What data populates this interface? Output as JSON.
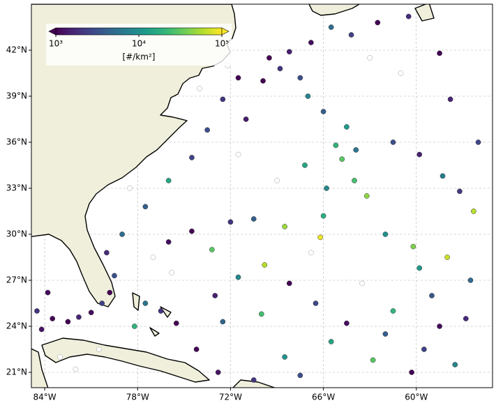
{
  "chart_data": {
    "type": "scatter",
    "x": [
      -69.5,
      -68.8,
      -68.2,
      -67.5,
      -69.9,
      -66.8,
      -65.5,
      -64.2,
      -62.5,
      -60.5,
      -67.0,
      -66.0,
      -64.5,
      -65.2,
      -64.8,
      -63.9,
      -64.0,
      -63.2,
      -65.8,
      -67.2,
      -61.5,
      -59.8,
      -58.3,
      -57.2,
      -56.3,
      -70.5,
      -72.0,
      -74.5,
      -76.0,
      -73.2,
      -68.5,
      -66.0,
      -62.0,
      -60.2,
      -58.0,
      -56.5,
      -59.0,
      -61.5,
      -58.5,
      -59.5,
      -57.5,
      -60.3,
      -62.8,
      -65.5,
      -66.5,
      -68.2,
      -69.8,
      -71.5,
      -73.0,
      -72.5,
      -74.2,
      -72.8,
      -70.5,
      -68.5,
      -67.5,
      -83.5,
      -82.5,
      -81.8,
      -81.0,
      -80.3,
      -79.8,
      -79.5,
      -80.0,
      -79.0,
      -77.5,
      -76.0,
      -74.5,
      -73.5,
      -71.0,
      -72.5,
      -71.5,
      -77.5,
      -76.5,
      -75.5,
      -78.2,
      -84.2,
      -83.0,
      -82.0,
      -80.5,
      -77.0,
      -78.5,
      -74.0,
      -72.2,
      -63.0,
      -69.0,
      -71.5,
      -75.8,
      -66.8,
      -63.5,
      -57.8,
      -56.0,
      -58.5,
      -61.0,
      -66.2,
      -64.5,
      -70.0,
      -62.0,
      -56.8,
      -59.8,
      -83.8,
      -84.5
    ],
    "y": [
      41.5,
      40.8,
      41.9,
      40.2,
      40.0,
      42.5,
      43.5,
      43.0,
      43.8,
      44.2,
      39.0,
      38.0,
      37.0,
      35.8,
      34.9,
      35.5,
      33.5,
      32.5,
      33.0,
      34.5,
      36.0,
      35.2,
      33.8,
      32.8,
      31.5,
      31.0,
      30.8,
      30.2,
      29.5,
      29.0,
      30.5,
      31.2,
      30.0,
      29.2,
      28.5,
      27.0,
      26.0,
      25.0,
      24.0,
      22.5,
      21.5,
      21.0,
      21.8,
      23.0,
      25.5,
      26.8,
      28.0,
      27.2,
      26.0,
      24.3,
      22.5,
      21.0,
      20.5,
      22.0,
      20.8,
      24.5,
      24.3,
      24.6,
      24.9,
      25.5,
      26.2,
      27.3,
      28.8,
      30.0,
      31.8,
      33.5,
      35.0,
      36.8,
      37.5,
      38.8,
      40.2,
      25.5,
      25.0,
      24.2,
      24.0,
      23.8,
      22.0,
      21.2,
      22.5,
      28.5,
      33.0,
      39.5,
      41.0,
      41.5,
      33.5,
      35.2,
      27.5,
      28.8,
      26.8,
      38.8,
      36.0,
      41.8,
      40.5,
      29.8,
      24.2,
      24.8,
      23.5,
      24.5,
      27.8,
      26.2,
      25.0
    ],
    "values": [
      800,
      2000,
      1500,
      3000,
      600,
      1200,
      5000,
      2500,
      900,
      1800,
      8000,
      4000,
      12000,
      20000,
      30000,
      6000,
      25000,
      45000,
      9000,
      15000,
      3000,
      1500,
      7000,
      2200,
      60000,
      4000,
      2000,
      800,
      1200,
      30000,
      50000,
      18000,
      10000,
      40000,
      70000,
      5000,
      3500,
      20000,
      1100,
      2500,
      8000,
      900,
      30000,
      15000,
      2800,
      700,
      60000,
      9000,
      1500,
      4500,
      800,
      1300,
      2000,
      11000,
      3000,
      700,
      1000,
      1600,
      1200,
      2500,
      900,
      3200,
      1800,
      5000,
      4000,
      15000,
      2500,
      3000,
      1400,
      2000,
      700,
      6000,
      2000,
      900,
      20000,
      1300,
      0,
      0,
      0,
      0,
      0,
      0,
      0,
      0,
      0,
      0,
      0,
      0,
      0,
      1600,
      2800,
      600,
      0,
      90000,
      1200,
      25000,
      4000,
      1700,
      12000,
      1100,
      2000
    ],
    "xlim": [
      -84.86,
      -55.08
    ],
    "ylim": [
      20,
      45
    ],
    "xticks": [
      {
        "value": -84,
        "label": "84°W"
      },
      {
        "value": -78,
        "label": "78°W"
      },
      {
        "value": -72,
        "label": "72°W"
      },
      {
        "value": -66,
        "label": "66°W"
      },
      {
        "value": -60,
        "label": "60°W"
      }
    ],
    "yticks": [
      {
        "value": 21,
        "label": "21°N"
      },
      {
        "value": 24,
        "label": "24°N"
      },
      {
        "value": 27,
        "label": "27°N"
      },
      {
        "value": 30,
        "label": "30°N"
      },
      {
        "value": 33,
        "label": "33°N"
      },
      {
        "value": 36,
        "label": "36°N"
      },
      {
        "value": 39,
        "label": "39°N"
      },
      {
        "value": 42,
        "label": "42°N"
      }
    ],
    "grid": true,
    "colormap": "viridis",
    "colorbar": {
      "label": "[#/km²]",
      "log": true,
      "lim": [
        1000,
        100000
      ],
      "ticks": [
        {
          "value": 1000,
          "label": "10³"
        },
        {
          "value": 10000,
          "label": "10⁴"
        },
        {
          "value": 100000,
          "label": "10⁵"
        }
      ]
    }
  }
}
